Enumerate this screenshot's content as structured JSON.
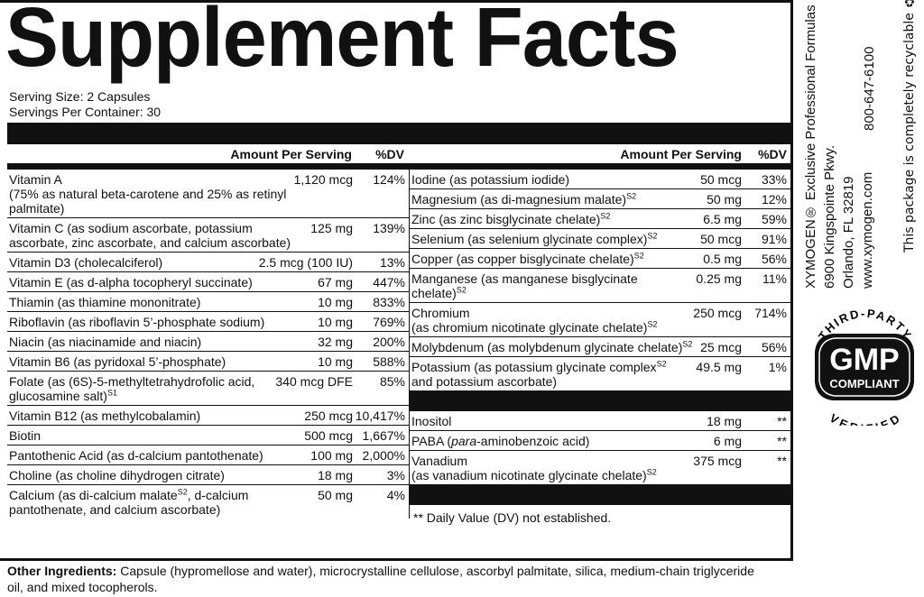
{
  "title": "Supplement Facts",
  "serving_size": "Serving Size: 2 Capsules",
  "servings_per_container": "Servings Per Container: 30",
  "header": {
    "amount": "Amount Per Serving",
    "dv": "%DV"
  },
  "left": {
    "rows": [
      {
        "name": [
          {
            "t": "Vitamin A"
          }
        ],
        "amount": "1,120 mcg",
        "dv": "124%",
        "detail": [
          {
            "t": "(75% as natural beta-carotene and 25% as retinyl palmitate)"
          }
        ]
      },
      {
        "name": [
          {
            "t": "Vitamin C (as sodium ascorbate, potassium ascorbate, zinc ascorbate, and calcium ascorbate)"
          }
        ],
        "amount": "125 mg",
        "dv": "139%"
      },
      {
        "name": [
          {
            "t": "Vitamin D3 (cholecalciferol)"
          }
        ],
        "amount": "2.5 mcg (100 IU)",
        "dv": "13%"
      },
      {
        "name": [
          {
            "t": "Vitamin E (as d-alpha tocopheryl succinate)"
          }
        ],
        "amount": "67 mg",
        "dv": "447%"
      },
      {
        "name": [
          {
            "t": "Thiamin (as thiamine mononitrate)"
          }
        ],
        "amount": "10 mg",
        "dv": "833%"
      },
      {
        "name": [
          {
            "t": "Riboflavin (as riboflavin 5’-phosphate sodium)"
          }
        ],
        "amount": "10 mg",
        "dv": "769%"
      },
      {
        "name": [
          {
            "t": "Niacin (as niacinamide and niacin)"
          }
        ],
        "amount": "32 mg",
        "dv": "200%"
      },
      {
        "name": [
          {
            "t": "Vitamin B6 (as pyridoxal 5’-phosphate)"
          }
        ],
        "amount": "10 mg",
        "dv": "588%"
      },
      {
        "name": [
          {
            "t": "Folate (as (6S)-5-methyltetrahydrofolic acid, glucosamine salt)"
          },
          {
            "sup": "S1"
          }
        ],
        "amount": "340 mcg DFE",
        "dv": "85%"
      },
      {
        "name": [
          {
            "t": "Vitamin B12 (as methylcobalamin)"
          }
        ],
        "amount": "250 mcg",
        "dv": "10,417%"
      },
      {
        "name": [
          {
            "t": "Biotin"
          }
        ],
        "amount": "500 mcg",
        "dv": "1,667%"
      },
      {
        "name": [
          {
            "t": "Pantothenic Acid (as d-calcium pantothenate)"
          }
        ],
        "amount": "100 mg",
        "dv": "2,000%"
      },
      {
        "name": [
          {
            "t": "Choline (as choline dihydrogen citrate)"
          }
        ],
        "amount": "18 mg",
        "dv": "3%"
      },
      {
        "name": [
          {
            "t": "Calcium (as di-calcium malate"
          },
          {
            "sup": "S2"
          },
          {
            "t": ", d-calcium pantothenate, and calcium ascorbate)"
          }
        ],
        "amount": "50 mg",
        "dv": "4%"
      }
    ]
  },
  "right": {
    "groups": [
      [
        {
          "name": [
            {
              "t": "Iodine (as potassium iodide)"
            }
          ],
          "amount": "50 mcg",
          "dv": "33%"
        },
        {
          "name": [
            {
              "t": "Magnesium (as di-magnesium malate)"
            },
            {
              "sup": "S2"
            }
          ],
          "amount": "50 mg",
          "dv": "12%"
        },
        {
          "name": [
            {
              "t": "Zinc (as zinc bisglycinate chelate)"
            },
            {
              "sup": "S2"
            }
          ],
          "amount": "6.5 mg",
          "dv": "59%"
        },
        {
          "name": [
            {
              "t": "Selenium (as selenium glycinate complex)"
            },
            {
              "sup": "S2"
            }
          ],
          "amount": "50 mcg",
          "dv": "91%"
        },
        {
          "name": [
            {
              "t": "Copper (as copper bisglycinate chelate)"
            },
            {
              "sup": "S2"
            }
          ],
          "amount": "0.5 mg",
          "dv": "56%"
        },
        {
          "name": [
            {
              "t": "Manganese (as manganese bisglycinate chelate)"
            },
            {
              "sup": "S2"
            }
          ],
          "amount": "0.25 mg",
          "dv": "11%"
        },
        {
          "name": [
            {
              "t": "Chromium"
            }
          ],
          "amount": "250 mcg",
          "dv": "714%",
          "detail": [
            {
              "t": "(as chromium nicotinate glycinate chelate)"
            },
            {
              "sup": "S2"
            }
          ]
        },
        {
          "name": [
            {
              "t": "Molybdenum (as molybdenum glycinate chelate)"
            },
            {
              "sup": "S2"
            }
          ],
          "amount": "25 mcg",
          "dv": "56%"
        },
        {
          "name": [
            {
              "t": "Potassium (as potassium glycinate complex"
            },
            {
              "sup": "S2"
            },
            {
              "t": " and potassium ascorbate)"
            }
          ],
          "amount": "49.5 mg",
          "dv": "1%"
        }
      ],
      [
        {
          "name": [
            {
              "t": "Inositol"
            }
          ],
          "amount": "18 mg",
          "dv": "**"
        },
        {
          "name": [
            {
              "t": "PABA ("
            },
            {
              "i": "para"
            },
            {
              "t": "-aminobenzoic acid)"
            }
          ],
          "amount": "6 mg",
          "dv": "**"
        },
        {
          "name": [
            {
              "t": "Vanadium"
            }
          ],
          "amount": "375 mcg",
          "dv": "**",
          "detail": [
            {
              "t": "(as vanadium nicotinate glycinate chelate)"
            },
            {
              "sup": "S2"
            }
          ]
        }
      ]
    ],
    "footnote": "** Daily Value (DV) not established."
  },
  "other_ingredients": {
    "label": "Other Ingredients:",
    "text": " Capsule (hypromellose and water), microcrystalline cellulose, ascorbyl palmitate, silica, medium-chain triglyceride oil, and mixed tocopherols."
  },
  "side": {
    "company": "XYMOGEN® Exclusive Professional Formulas",
    "street": "6900 Kingspointe Pkwy.",
    "city": "Orlando, FL 32819",
    "web": "www.xymogen.com",
    "phone": "800-647-6100",
    "recycle": "This package is completely recyclable ♻"
  },
  "badge": {
    "top": "THIRD-PARTY",
    "main": "GMP",
    "sub": "COMPLIANT",
    "bottom": "VERIFIED"
  }
}
